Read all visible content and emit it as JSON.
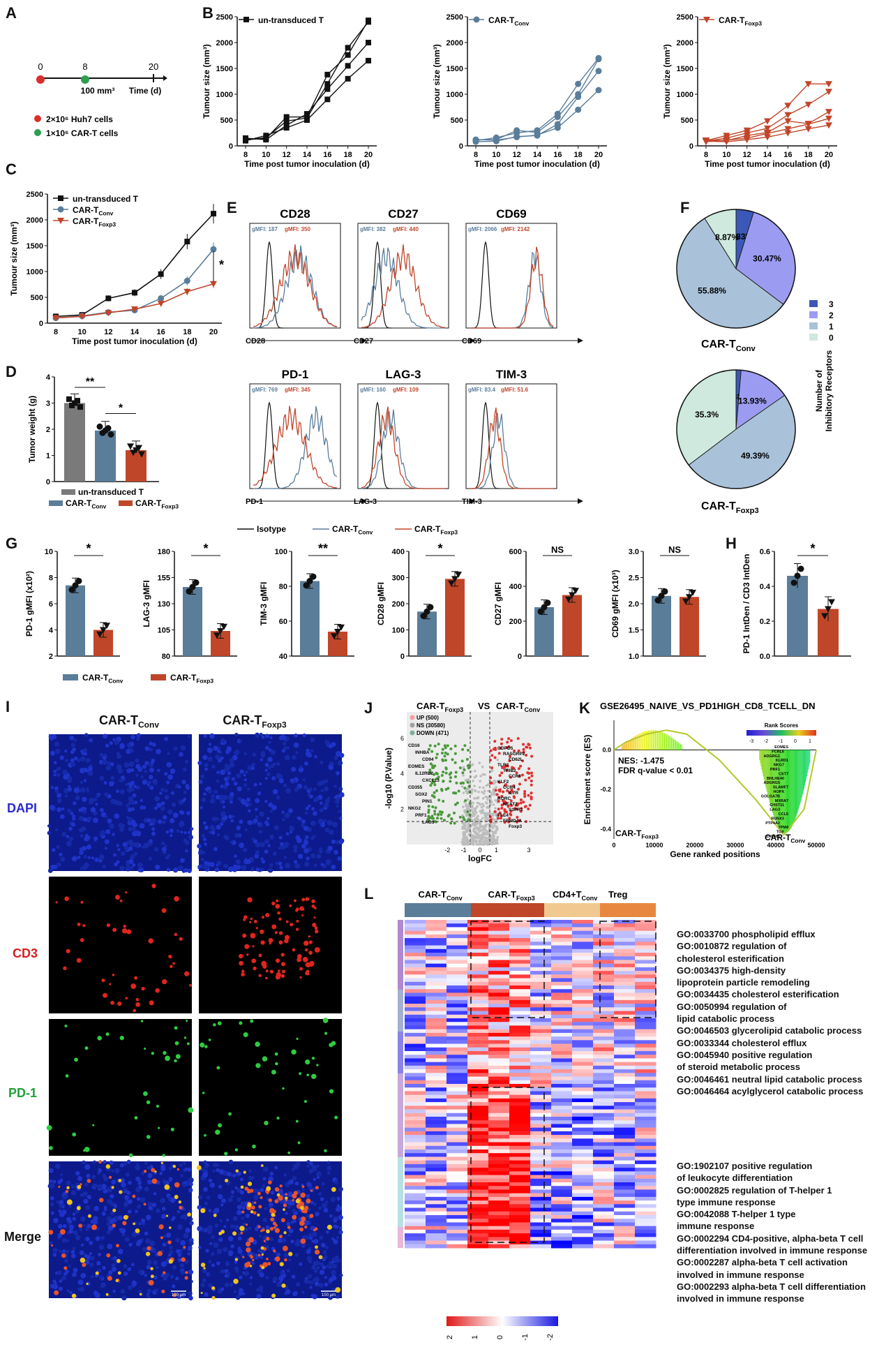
{
  "panels": {
    "A": {
      "label": "A",
      "ticks": [
        "0",
        "8",
        "20"
      ],
      "volume": "100 mm³",
      "time": "Time (d)",
      "legend": [
        {
          "text": "2×10⁶ Huh7 cells",
          "color": "#d9302c"
        },
        {
          "text": "1×10⁶ CAR-T cells",
          "color": "#2e9e4f"
        }
      ]
    },
    "B": {
      "label": "B",
      "ylabel": "Tumour size (mm³)",
      "xlabel": "Time post tumor inoculation (d)",
      "titles": [
        "un-transduced T",
        "CAR-T",
        "CAR-T"
      ],
      "subs": [
        "",
        "Conv",
        "Foxp3"
      ]
    },
    "C": {
      "label": "C",
      "ylabel": "Tumour size (mm³)",
      "xlabel": "Time post tumor inoculation (d)",
      "legend": [
        "un-transduced T",
        "CAR-T",
        "CAR-T"
      ],
      "legend_subs": [
        "",
        "Conv",
        "Foxp3"
      ],
      "sig": "*"
    },
    "D": {
      "label": "D",
      "ylabel": "Tumor weight (g)",
      "sig1": "**",
      "sig2": "*",
      "legend": [
        "un-transduced T",
        "CAR-T",
        "CAR-T"
      ],
      "legend_subs": [
        "",
        "Conv",
        "Foxp3"
      ]
    },
    "E": {
      "label": "E",
      "markers": [
        "CD28",
        "CD27",
        "CD69",
        "PD-1",
        "LAG-3",
        "TIM-3"
      ],
      "gmfi_conv": [
        "gMFI: 187",
        "gMFI: 382",
        "gMFI: 2066",
        "gMFI: 769",
        "gMFI: 160",
        "gMFI: 83.4"
      ],
      "gmfi_foxp3": [
        "gMFI: 350",
        "gMFI: 440",
        "gMFI: 2142",
        "gMFI: 345",
        "gMFI: 109",
        "gMFI: 51.6"
      ],
      "legend": [
        "Isotype",
        "CAR-T",
        "CAR-T"
      ],
      "legend_subs": [
        "",
        "Conv",
        "Foxp3"
      ]
    },
    "F": {
      "label": "F",
      "titles": [
        "CAR-T",
        "CAR-T"
      ],
      "subs": [
        "Conv",
        "Foxp3"
      ],
      "legend_title": "Number of Inhibitory Receptors",
      "legend": [
        "3",
        "2",
        "1",
        "0"
      ]
    },
    "G": {
      "label": "G",
      "ylabels": [
        "PD-1 gMFI (x10²)",
        "LAG-3 gMFI",
        "TIM-3 gMFI",
        "CD28 gMFI",
        "CD27 gMFI",
        "CD69 gMFI (x10³)"
      ],
      "sigs": [
        "*",
        "*",
        "**",
        "*",
        "NS",
        "NS"
      ],
      "legend": [
        "CAR-T",
        "CAR-T"
      ],
      "legend_subs": [
        "Conv",
        "Foxp3"
      ]
    },
    "H": {
      "label": "H",
      "ylabel": "PD-1 IntDen / CD3 IntDen",
      "sig": "*"
    },
    "I": {
      "label": "I",
      "cols": [
        "CAR-T",
        "CAR-T"
      ],
      "col_subs": [
        "Conv",
        "Foxp3"
      ],
      "rows": [
        "DAPI",
        "CD3",
        "PD-1",
        "Merge"
      ],
      "scale": "100 μm"
    },
    "J": {
      "label": "J",
      "title_left": "CAR-T",
      "title_left_sub": "Foxp3",
      "vs": "VS",
      "title_right": "CAR-T",
      "title_right_sub": "Conv",
      "legend": [
        "UP (500)",
        "NS (30580)",
        "DOWN (471)"
      ],
      "ylabel": "-log10 (P.Value)",
      "xlabel": "logFC",
      "genes_left": [
        "CD16",
        "INHBA",
        "CD94",
        "EOMES",
        "IL12RB2",
        "CXCL13",
        "CD355",
        "SOX2",
        "PIN1",
        "NKG2",
        "PRF1",
        "LAG3"
      ],
      "genes_right": [
        "GDPD5",
        "RASGRP2",
        "CD62L",
        "TLR2",
        "TRIB2",
        "CCR6",
        "KLF2",
        "CCR4",
        "IL7R",
        "RORC",
        "NEAT1",
        "S1PR1",
        "TLE4",
        "FRMD4A",
        "Foxp3"
      ]
    },
    "K": {
      "label": "K",
      "title": "GSE26495_NAIVE_VS_PD1HIGH_CD8_TCELL_DN",
      "nes": "NES: -1.475",
      "fdr": "FDR q-value < 0.01",
      "ylabel": "Enrichment score (ES)",
      "xlabel": "Gene ranked positions",
      "left": "CAR-T",
      "left_sub": "Foxp3",
      "right": "CAR-T",
      "right_sub": "Conv",
      "rank_title": "Rank Scores",
      "genes": [
        "EOMES",
        "FCRL6",
        "ADGRG1",
        "KLRD1",
        "NKG7",
        "PRF1",
        "CST7",
        "BHLHE40",
        "ADGRG5",
        "SLAMF7",
        "HOPX",
        "GOLGA7B",
        "MXRA7",
        "CHST11",
        "LAG3",
        "CCL5",
        "RUNX3",
        "PTP4A2",
        "TPM4",
        "TOX",
        "ZNF683"
      ]
    },
    "L": {
      "label": "L",
      "groups": [
        "CAR-T",
        "CAR-T",
        "CD4+T",
        "Treg"
      ],
      "group_subs": [
        "Conv",
        "Foxp3",
        "Conv",
        ""
      ],
      "go_terms": [
        "GO:0033700 phospholipid efflux",
        "GO:0010872 regulation of",
        "cholesterol esterification",
        "GO:0034375 high-density",
        "lipoprotein particle remodeling",
        "GO:0034435 cholesterol esterification",
        "GO:0050994 regulation of",
        "lipid catabolic process",
        "GO:0046503 glycerolipid catabolic process",
        "GO:0033344 cholesterol efflux",
        "GO:0045940 positive regulation",
        "of steroid metabolic process",
        "GO:0046461 neutral lipid catabolic process",
        "GO:0046464 acylglycerol catabolic process"
      ],
      "go_terms2": [
        "GO:1902107 positive regulation",
        "of leukocyte differentiation",
        "GO:0002825 regulation of T-helper 1",
        "type immune response",
        "GO:0042088 T-helper 1 type",
        "immune response",
        "GO:0002294 CD4-positive, alpha-beta T cell",
        "differentiation involved in immune response",
        "GO:0002287 alpha-beta T cell activation",
        "involved in immune response",
        "GO:0002293 alpha-beta T cell differentiation",
        "involved in immune response"
      ],
      "scale": [
        "2",
        "1",
        "0",
        "-1",
        "-2"
      ]
    }
  },
  "chart_data": [
    {
      "type": "line",
      "title": "B-1 un-transduced T",
      "x": [
        8,
        10,
        12,
        14,
        16,
        18,
        20
      ],
      "series": [
        {
          "values": [
            130,
            140,
            560,
            560,
            1380,
            1760,
            2430
          ]
        },
        {
          "values": [
            110,
            160,
            480,
            540,
            1200,
            1900,
            2400
          ]
        },
        {
          "values": [
            150,
            120,
            400,
            620,
            1100,
            1550,
            2000
          ]
        },
        {
          "values": [
            100,
            200,
            350,
            500,
            900,
            1300,
            1650
          ]
        }
      ],
      "ylim": [
        0,
        2500
      ]
    },
    {
      "type": "line",
      "title": "B-2 CAR-T Conv",
      "x": [
        8,
        10,
        12,
        14,
        16,
        18,
        20
      ],
      "series": [
        {
          "values": [
            120,
            120,
            300,
            260,
            560,
            1000,
            1680
          ]
        },
        {
          "values": [
            100,
            160,
            250,
            300,
            620,
            1200,
            1700
          ]
        },
        {
          "values": [
            80,
            90,
            180,
            200,
            420,
            950,
            1450
          ]
        },
        {
          "values": [
            120,
            110,
            170,
            210,
            350,
            700,
            1080
          ]
        }
      ],
      "ylim": [
        0,
        2500
      ]
    },
    {
      "type": "line",
      "title": "B-3 CAR-T Foxp3",
      "x": [
        8,
        10,
        12,
        14,
        16,
        18,
        20
      ],
      "series": [
        {
          "values": [
            100,
            200,
            300,
            480,
            780,
            1200,
            1200
          ]
        },
        {
          "values": [
            90,
            150,
            250,
            340,
            600,
            800,
            1050
          ]
        },
        {
          "values": [
            110,
            100,
            200,
            260,
            480,
            430,
            660
          ]
        },
        {
          "values": [
            80,
            110,
            150,
            240,
            330,
            420,
            530
          ]
        },
        {
          "values": [
            90,
            80,
            120,
            170,
            250,
            330,
            400
          ]
        }
      ],
      "ylim": [
        0,
        2500
      ]
    },
    {
      "type": "line",
      "title": "C",
      "x": [
        8,
        10,
        12,
        14,
        16,
        18,
        20
      ],
      "ylim": [
        0,
        2500
      ],
      "series": [
        {
          "name": "un-transduced T",
          "values": [
            130,
            160,
            480,
            590,
            950,
            1580,
            2120
          ]
        },
        {
          "name": "CAR-T Conv",
          "values": [
            100,
            140,
            210,
            250,
            480,
            820,
            1430
          ]
        },
        {
          "name": "CAR-T Foxp3",
          "values": [
            100,
            130,
            200,
            270,
            380,
            610,
            760
          ]
        }
      ]
    },
    {
      "type": "bar",
      "title": "D",
      "categories": [
        "un-transduced T",
        "CAR-T Conv",
        "CAR-T Foxp3"
      ],
      "values": [
        3.0,
        1.95,
        1.2
      ],
      "ylim": [
        0,
        4
      ]
    },
    {
      "type": "pie",
      "title": "F CAR-T Conv",
      "labels": [
        "3",
        "2",
        "1",
        "0"
      ],
      "values": [
        4.83,
        30.47,
        55.88,
        8.87
      ]
    },
    {
      "type": "pie",
      "title": "F CAR-T Foxp3",
      "labels": [
        "3",
        "2",
        "1",
        "0"
      ],
      "values": [
        1.38,
        13.93,
        49.39,
        35.3
      ]
    },
    {
      "type": "bar",
      "title": "G PD-1",
      "categories": [
        "CAR-T Conv",
        "CAR-T Foxp3"
      ],
      "values": [
        7.4,
        4.0
      ],
      "ylim": [
        2,
        10
      ]
    },
    {
      "type": "bar",
      "title": "G LAG-3",
      "categories": [
        "CAR-T Conv",
        "CAR-T Foxp3"
      ],
      "values": [
        146,
        104
      ],
      "ylim": [
        80,
        180
      ]
    },
    {
      "type": "bar",
      "title": "G TIM-3",
      "categories": [
        "CAR-T Conv",
        "CAR-T Foxp3"
      ],
      "values": [
        83,
        54
      ],
      "ylim": [
        40,
        100
      ]
    },
    {
      "type": "bar",
      "title": "G CD28",
      "categories": [
        "CAR-T Conv",
        "CAR-T Foxp3"
      ],
      "values": [
        170,
        295
      ],
      "ylim": [
        0,
        400
      ]
    },
    {
      "type": "bar",
      "title": "G CD27",
      "categories": [
        "CAR-T Conv",
        "CAR-T Foxp3"
      ],
      "values": [
        280,
        350
      ],
      "ylim": [
        0,
        600
      ]
    },
    {
      "type": "bar",
      "title": "G CD69",
      "categories": [
        "CAR-T Conv",
        "CAR-T Foxp3"
      ],
      "values": [
        2.15,
        2.13
      ],
      "ylim": [
        1,
        3
      ]
    },
    {
      "type": "bar",
      "title": "H",
      "categories": [
        "CAR-T Conv",
        "CAR-T Foxp3"
      ],
      "values": [
        0.46,
        0.27
      ],
      "ylim": [
        0,
        0.6
      ]
    }
  ],
  "colors": {
    "black": "#111111",
    "conv": "#5a7d9a",
    "foxp3": "#c0462a",
    "grey": "#7a7a7a",
    "red_dot": "#d9302c",
    "green_dot": "#2e9e4f",
    "pie": [
      "#3b58b8",
      "#9b9cf1",
      "#a9c2d9",
      "#cfe9de"
    ]
  }
}
